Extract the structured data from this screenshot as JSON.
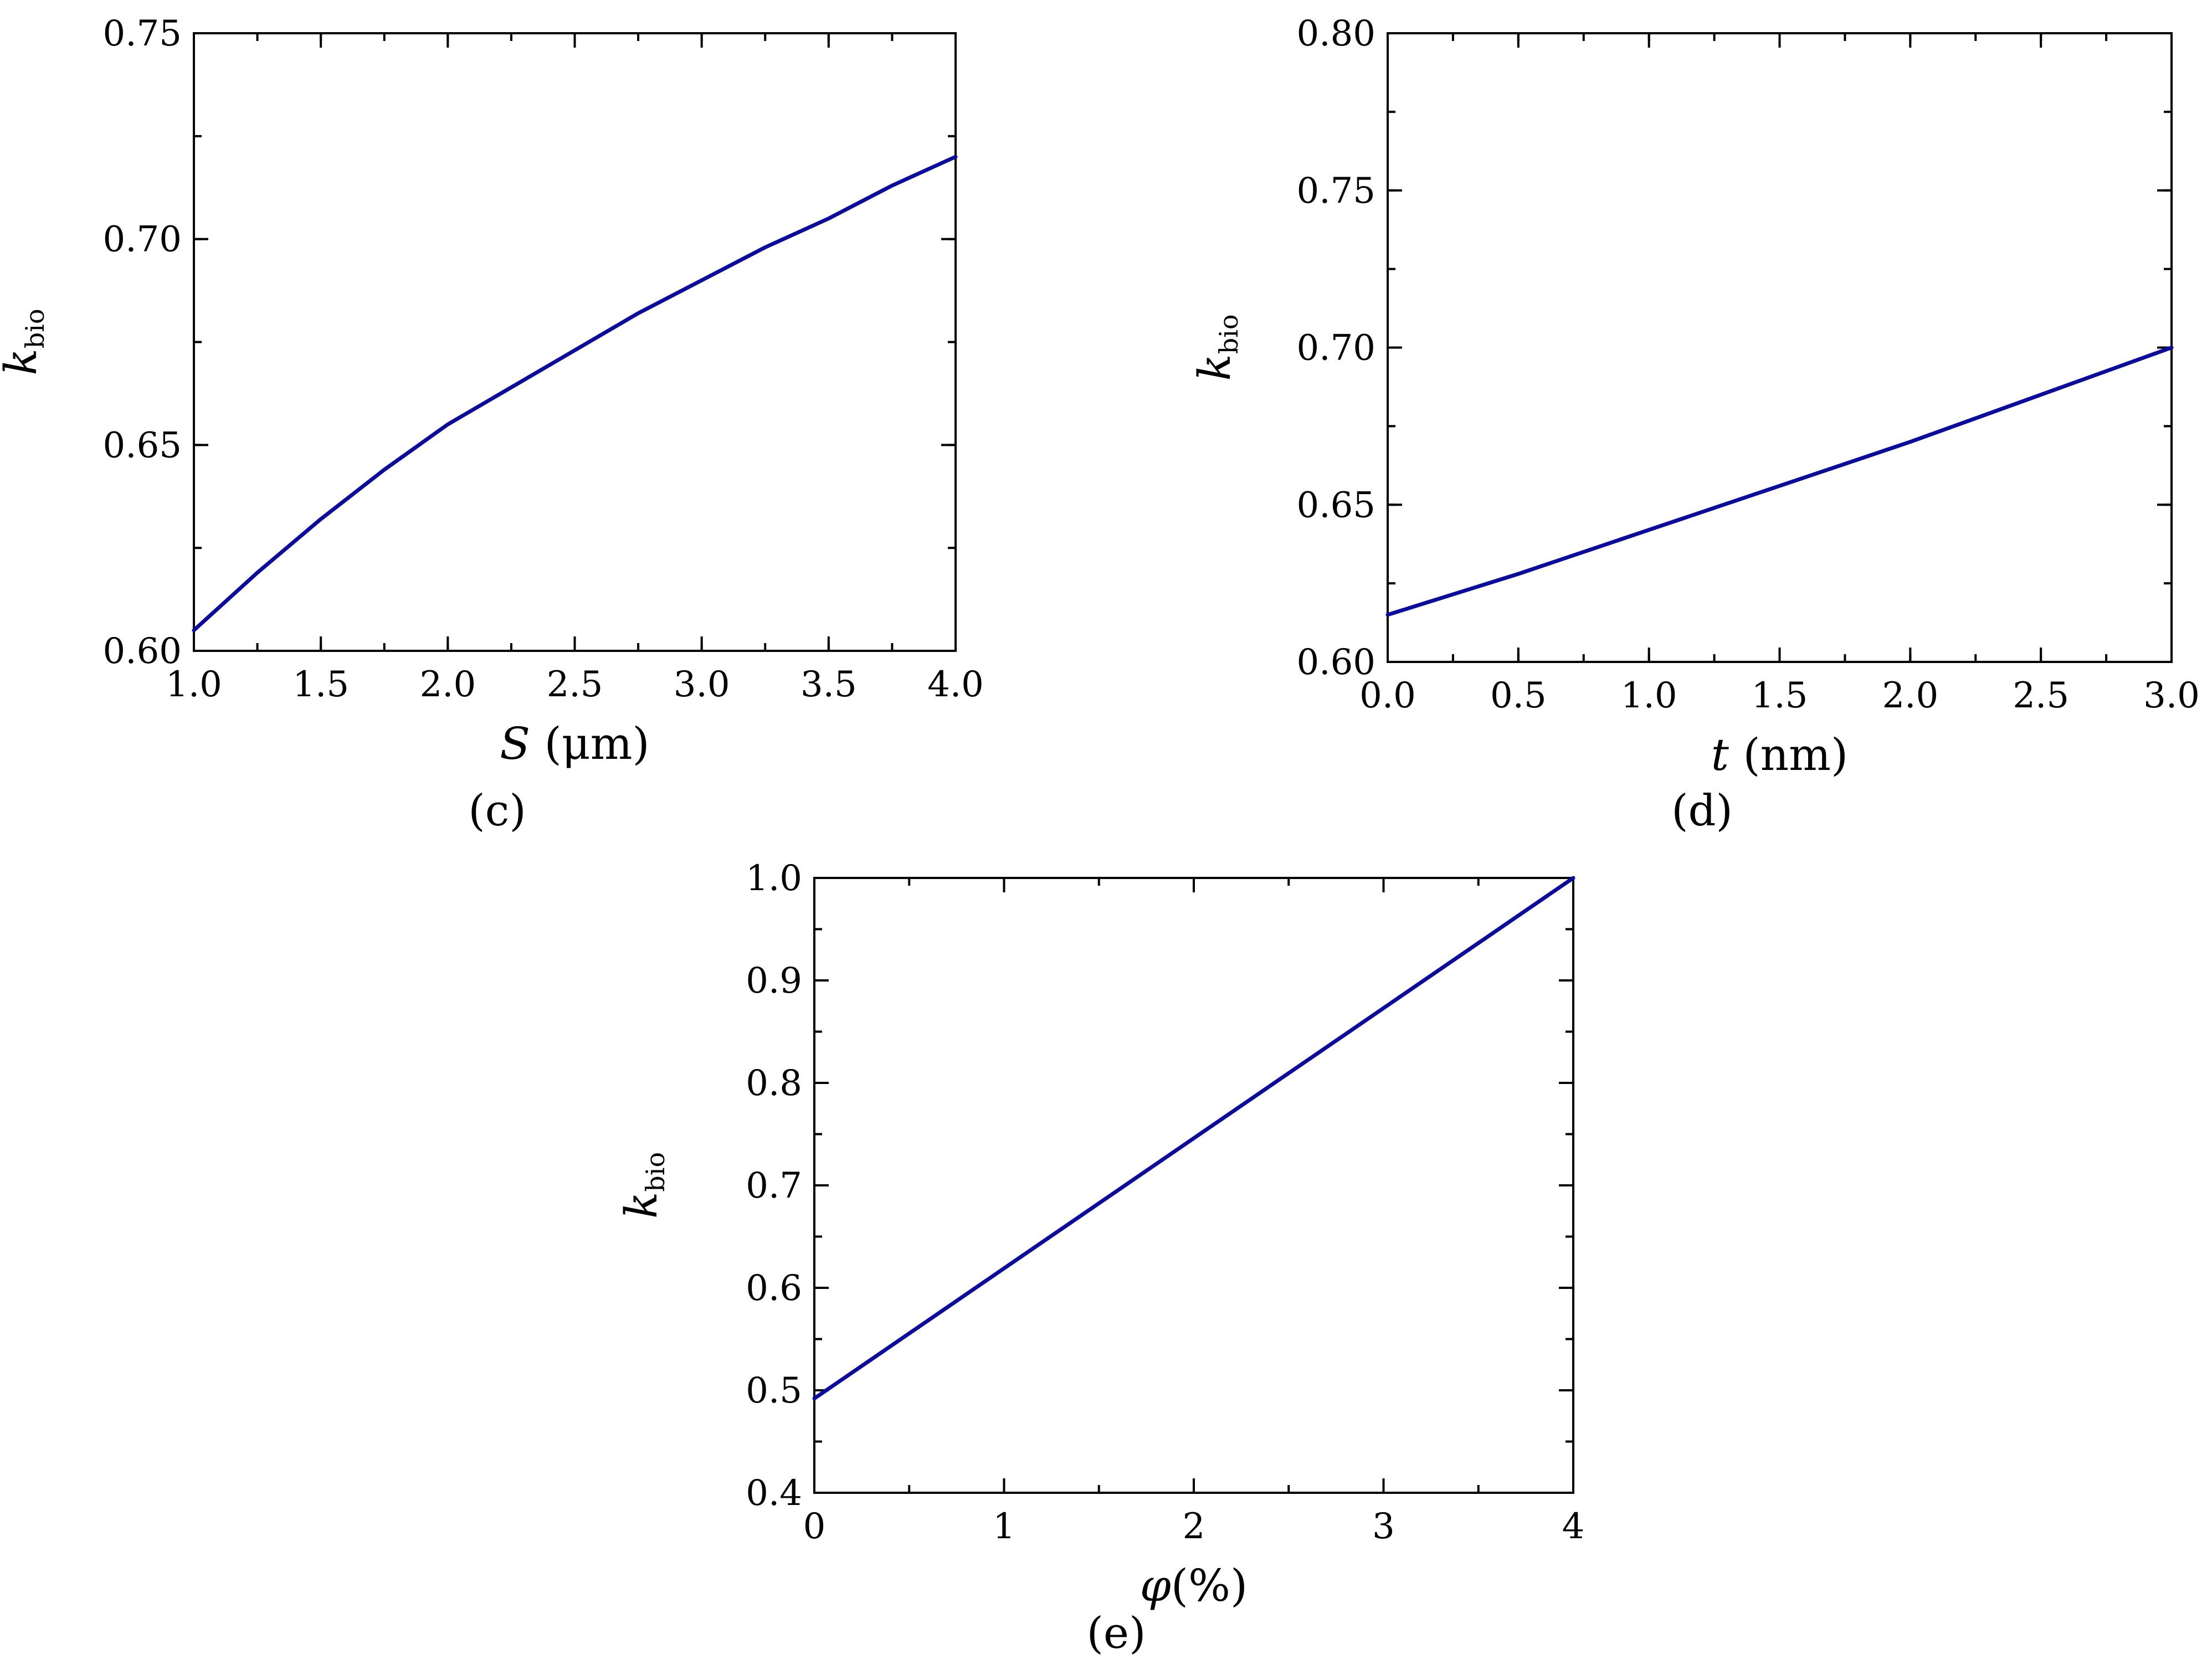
{
  "colors": {
    "series": "#0b0b9e",
    "frame": "#000000"
  },
  "chart_data": [
    {
      "id": "c",
      "type": "line",
      "panel_label": "(c)",
      "xlabel": {
        "var": "S",
        "unit": " (μm)"
      },
      "ylabel": {
        "var": "k",
        "sub": "bio"
      },
      "xlim": [
        1.0,
        4.0
      ],
      "ylim": [
        0.6,
        0.75
      ],
      "xticks": [
        "1.0",
        "1.5",
        "2.0",
        "2.5",
        "3.0",
        "3.5",
        "4.0"
      ],
      "yticks": [
        "0.60",
        "0.65",
        "0.70",
        "0.75"
      ],
      "minor_x": 0.25,
      "minor_y": 0.025,
      "series": [
        {
          "x": [
            1.0,
            1.25,
            1.5,
            1.75,
            2.0,
            2.25,
            2.5,
            2.75,
            3.0,
            3.25,
            3.5,
            3.75,
            4.0
          ],
          "y": [
            0.605,
            0.619,
            0.632,
            0.644,
            0.655,
            0.664,
            0.673,
            0.682,
            0.69,
            0.698,
            0.705,
            0.713,
            0.72
          ]
        }
      ]
    },
    {
      "id": "d",
      "type": "line",
      "panel_label": "(d)",
      "xlabel": {
        "var": "t",
        "unit": " (nm)"
      },
      "ylabel": {
        "var": "k",
        "sub": "bio"
      },
      "xlim": [
        0.0,
        3.0
      ],
      "ylim": [
        0.6,
        0.8
      ],
      "xticks": [
        "0.0",
        "0.5",
        "1.0",
        "1.5",
        "2.0",
        "2.5",
        "3.0"
      ],
      "yticks": [
        "0.60",
        "0.65",
        "0.70",
        "0.75",
        "0.80"
      ],
      "minor_x": 0.25,
      "minor_y": 0.025,
      "series": [
        {
          "x": [
            0.0,
            0.5,
            1.0,
            1.5,
            2.0,
            2.5,
            3.0
          ],
          "y": [
            0.615,
            0.628,
            0.642,
            0.656,
            0.67,
            0.685,
            0.7
          ]
        }
      ]
    },
    {
      "id": "e",
      "type": "line",
      "panel_label": "(e)",
      "xlabel": {
        "var": "φ",
        "unit": "(%)"
      },
      "ylabel": {
        "var": "k",
        "sub": "bio"
      },
      "xlim": [
        0,
        4
      ],
      "ylim": [
        0.4,
        1.0
      ],
      "xticks": [
        "0",
        "1",
        "2",
        "3",
        "4"
      ],
      "yticks": [
        "0.4",
        "0.5",
        "0.6",
        "0.7",
        "0.8",
        "0.9",
        "1.0"
      ],
      "minor_x": 0.5,
      "minor_y": 0.05,
      "series": [
        {
          "x": [
            0,
            1,
            2,
            3,
            4
          ],
          "y": [
            0.492,
            0.619,
            0.746,
            0.873,
            1.0
          ]
        }
      ]
    }
  ]
}
